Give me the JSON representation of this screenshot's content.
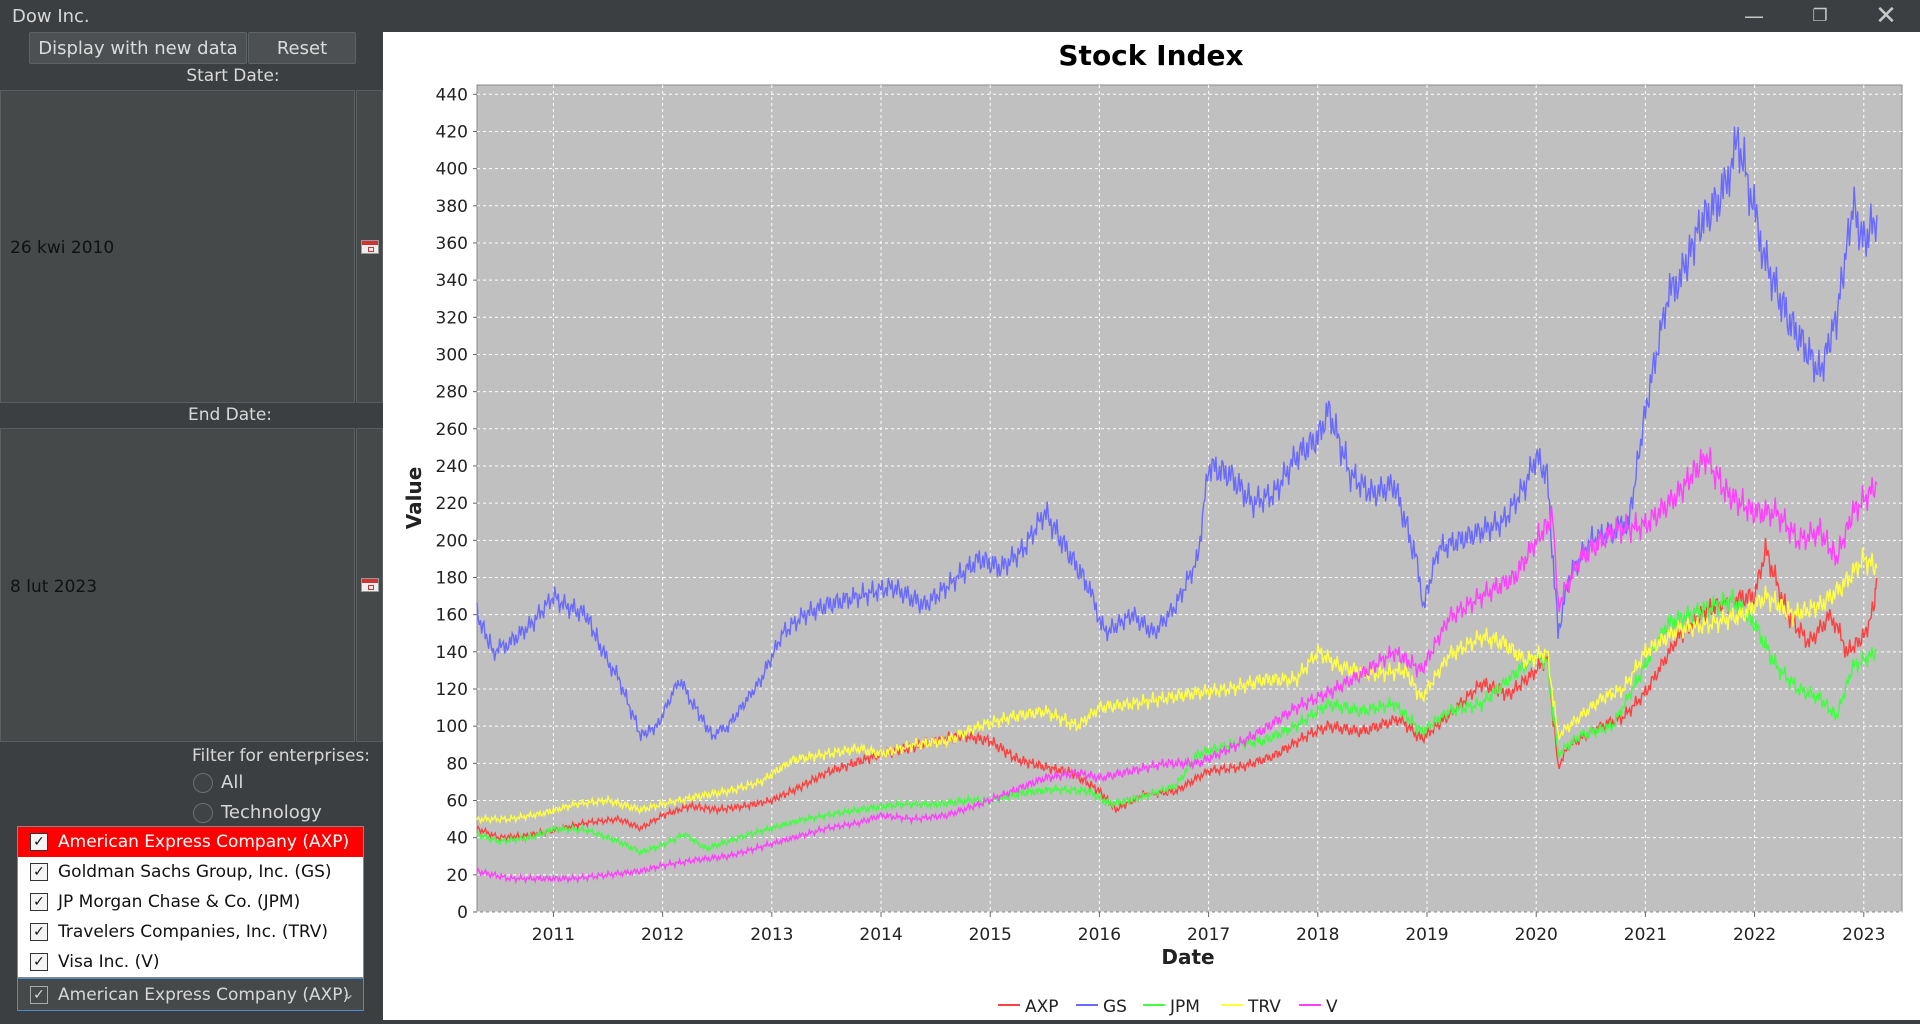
{
  "window": {
    "title": "Dow Inc.",
    "controls": [
      "minimize",
      "restore",
      "close"
    ]
  },
  "toolbar": {
    "display_label": "Display with new data",
    "reset_label": "Reset"
  },
  "dates": {
    "start_label": "Start Date:",
    "start_value": "26 kwi 2010",
    "end_label": "End Date:",
    "end_value": "8 lut 2023"
  },
  "filter": {
    "label": "Filter for enterprises:",
    "options": [
      "All",
      "Technology"
    ]
  },
  "companies": {
    "items": [
      {
        "label": "American Express Company (AXP)",
        "checked": true,
        "selected": true
      },
      {
        "label": "Goldman Sachs Group, Inc. (GS)",
        "checked": true
      },
      {
        "label": "JP Morgan Chase & Co. (JPM)",
        "checked": true
      },
      {
        "label": "Travelers Companies, Inc. (TRV)",
        "checked": true
      },
      {
        "label": "Visa Inc. (V)",
        "checked": true
      }
    ],
    "combo_value": "American Express Company (AXP)"
  },
  "colors": {
    "selected_item": "#ff0000",
    "plot_bg": "#c0c0c0"
  },
  "chart_data": {
    "type": "line",
    "title": "Stock Index",
    "xlabel": "Date",
    "ylabel": "Value",
    "x_ticks": [
      "2011",
      "2012",
      "2013",
      "2014",
      "2015",
      "2016",
      "2017",
      "2018",
      "2019",
      "2020",
      "2021",
      "2022",
      "2023"
    ],
    "y_ticks": [
      0,
      20,
      40,
      60,
      80,
      100,
      120,
      140,
      160,
      180,
      200,
      220,
      240,
      260,
      280,
      300,
      320,
      340,
      360,
      380,
      400,
      420,
      440
    ],
    "xlim": [
      2010.3,
      2023.35
    ],
    "ylim": [
      0,
      445
    ],
    "grid": true,
    "legend": "bottom",
    "series": [
      {
        "name": "AXP",
        "color": "#ff4040",
        "points": [
          [
            2010.3,
            45
          ],
          [
            2010.5,
            40
          ],
          [
            2010.75,
            41
          ],
          [
            2011,
            44
          ],
          [
            2011.3,
            48
          ],
          [
            2011.6,
            50
          ],
          [
            2011.8,
            45
          ],
          [
            2012,
            52
          ],
          [
            2012.25,
            57
          ],
          [
            2012.5,
            55
          ],
          [
            2012.75,
            57
          ],
          [
            2013,
            60
          ],
          [
            2013.25,
            67
          ],
          [
            2013.5,
            75
          ],
          [
            2013.75,
            80
          ],
          [
            2014,
            85
          ],
          [
            2014.25,
            88
          ],
          [
            2014.5,
            92
          ],
          [
            2014.75,
            95
          ],
          [
            2015,
            92
          ],
          [
            2015.25,
            82
          ],
          [
            2015.5,
            78
          ],
          [
            2015.75,
            75
          ],
          [
            2016,
            65
          ],
          [
            2016.15,
            55
          ],
          [
            2016.4,
            63
          ],
          [
            2016.7,
            65
          ],
          [
            2017,
            76
          ],
          [
            2017.3,
            78
          ],
          [
            2017.6,
            84
          ],
          [
            2017.9,
            95
          ],
          [
            2018.1,
            100
          ],
          [
            2018.4,
            97
          ],
          [
            2018.75,
            104
          ],
          [
            2018.95,
            93
          ],
          [
            2019.2,
            106
          ],
          [
            2019.5,
            123
          ],
          [
            2019.75,
            117
          ],
          [
            2020,
            130
          ],
          [
            2020.1,
            137
          ],
          [
            2020.2,
            78
          ],
          [
            2020.3,
            90
          ],
          [
            2020.6,
            100
          ],
          [
            2020.8,
            105
          ],
          [
            2021,
            118
          ],
          [
            2021.3,
            148
          ],
          [
            2021.55,
            162
          ],
          [
            2021.8,
            168
          ],
          [
            2022,
            170
          ],
          [
            2022.1,
            195
          ],
          [
            2022.3,
            160
          ],
          [
            2022.5,
            145
          ],
          [
            2022.7,
            160
          ],
          [
            2022.85,
            140
          ],
          [
            2023,
            148
          ],
          [
            2023.1,
            165
          ],
          [
            2023.12,
            180
          ]
        ]
      },
      {
        "name": "GS",
        "color": "#6a6aff",
        "points": [
          [
            2010.3,
            160
          ],
          [
            2010.45,
            140
          ],
          [
            2010.6,
            145
          ],
          [
            2010.8,
            155
          ],
          [
            2011,
            170
          ],
          [
            2011.1,
            165
          ],
          [
            2011.3,
            160
          ],
          [
            2011.45,
            140
          ],
          [
            2011.6,
            125
          ],
          [
            2011.8,
            95
          ],
          [
            2011.95,
            100
          ],
          [
            2012.15,
            125
          ],
          [
            2012.3,
            110
          ],
          [
            2012.45,
            95
          ],
          [
            2012.6,
            100
          ],
          [
            2012.9,
            125
          ],
          [
            2013.1,
            150
          ],
          [
            2013.3,
            160
          ],
          [
            2013.5,
            165
          ],
          [
            2013.8,
            170
          ],
          [
            2014.1,
            175
          ],
          [
            2014.4,
            165
          ],
          [
            2014.7,
            180
          ],
          [
            2014.9,
            190
          ],
          [
            2015.1,
            185
          ],
          [
            2015.3,
            195
          ],
          [
            2015.5,
            215
          ],
          [
            2015.7,
            195
          ],
          [
            2015.9,
            175
          ],
          [
            2016.05,
            150
          ],
          [
            2016.3,
            160
          ],
          [
            2016.5,
            150
          ],
          [
            2016.7,
            165
          ],
          [
            2016.9,
            190
          ],
          [
            2017,
            240
          ],
          [
            2017.2,
            235
          ],
          [
            2017.4,
            220
          ],
          [
            2017.6,
            225
          ],
          [
            2017.8,
            245
          ],
          [
            2018,
            255
          ],
          [
            2018.1,
            270
          ],
          [
            2018.3,
            235
          ],
          [
            2018.5,
            225
          ],
          [
            2018.7,
            230
          ],
          [
            2018.9,
            190
          ],
          [
            2018.97,
            165
          ],
          [
            2019.1,
            195
          ],
          [
            2019.3,
            200
          ],
          [
            2019.5,
            205
          ],
          [
            2019.7,
            210
          ],
          [
            2019.9,
            230
          ],
          [
            2020,
            245
          ],
          [
            2020.1,
            235
          ],
          [
            2020.2,
            150
          ],
          [
            2020.3,
            180
          ],
          [
            2020.5,
            200
          ],
          [
            2020.7,
            205
          ],
          [
            2020.85,
            210
          ],
          [
            2021,
            270
          ],
          [
            2021.2,
            330
          ],
          [
            2021.35,
            345
          ],
          [
            2021.5,
            370
          ],
          [
            2021.7,
            385
          ],
          [
            2021.85,
            415
          ],
          [
            2021.95,
            390
          ],
          [
            2022.1,
            350
          ],
          [
            2022.3,
            320
          ],
          [
            2022.5,
            300
          ],
          [
            2022.6,
            290
          ],
          [
            2022.75,
            320
          ],
          [
            2022.9,
            380
          ],
          [
            2023,
            360
          ],
          [
            2023.12,
            375
          ]
        ]
      },
      {
        "name": "JPM",
        "color": "#40ff40",
        "points": [
          [
            2010.3,
            42
          ],
          [
            2010.5,
            38
          ],
          [
            2010.8,
            40
          ],
          [
            2011,
            45
          ],
          [
            2011.3,
            44
          ],
          [
            2011.6,
            38
          ],
          [
            2011.8,
            32
          ],
          [
            2012,
            36
          ],
          [
            2012.2,
            42
          ],
          [
            2012.4,
            34
          ],
          [
            2012.6,
            38
          ],
          [
            2012.8,
            42
          ],
          [
            2013,
            45
          ],
          [
            2013.3,
            50
          ],
          [
            2013.6,
            53
          ],
          [
            2013.9,
            56
          ],
          [
            2014.2,
            58
          ],
          [
            2014.5,
            58
          ],
          [
            2014.8,
            60
          ],
          [
            2015,
            60
          ],
          [
            2015.3,
            64
          ],
          [
            2015.6,
            66
          ],
          [
            2015.9,
            65
          ],
          [
            2016.1,
            58
          ],
          [
            2016.4,
            62
          ],
          [
            2016.7,
            68
          ],
          [
            2016.9,
            85
          ],
          [
            2017.2,
            90
          ],
          [
            2017.5,
            92
          ],
          [
            2017.8,
            100
          ],
          [
            2018.1,
            112
          ],
          [
            2018.4,
            108
          ],
          [
            2018.7,
            112
          ],
          [
            2018.95,
            97
          ],
          [
            2019.2,
            108
          ],
          [
            2019.5,
            112
          ],
          [
            2019.8,
            128
          ],
          [
            2020,
            138
          ],
          [
            2020.1,
            135
          ],
          [
            2020.2,
            85
          ],
          [
            2020.4,
            95
          ],
          [
            2020.7,
            100
          ],
          [
            2020.9,
            122
          ],
          [
            2021.2,
            155
          ],
          [
            2021.5,
            162
          ],
          [
            2021.8,
            168
          ],
          [
            2022,
            155
          ],
          [
            2022.2,
            132
          ],
          [
            2022.4,
            120
          ],
          [
            2022.6,
            115
          ],
          [
            2022.75,
            105
          ],
          [
            2022.9,
            132
          ],
          [
            2023.12,
            140
          ]
        ]
      },
      {
        "name": "TRV",
        "color": "#ffff40",
        "points": [
          [
            2010.3,
            50
          ],
          [
            2010.6,
            50
          ],
          [
            2010.9,
            53
          ],
          [
            2011.2,
            58
          ],
          [
            2011.5,
            60
          ],
          [
            2011.8,
            55
          ],
          [
            2012,
            58
          ],
          [
            2012.3,
            62
          ],
          [
            2012.6,
            65
          ],
          [
            2012.9,
            70
          ],
          [
            2013.2,
            82
          ],
          [
            2013.5,
            85
          ],
          [
            2013.8,
            88
          ],
          [
            2014,
            85
          ],
          [
            2014.3,
            90
          ],
          [
            2014.6,
            92
          ],
          [
            2014.9,
            100
          ],
          [
            2015.2,
            105
          ],
          [
            2015.5,
            108
          ],
          [
            2015.8,
            100
          ],
          [
            2016,
            110
          ],
          [
            2016.3,
            112
          ],
          [
            2016.6,
            115
          ],
          [
            2016.9,
            118
          ],
          [
            2017.2,
            120
          ],
          [
            2017.5,
            125
          ],
          [
            2017.8,
            125
          ],
          [
            2018,
            140
          ],
          [
            2018.2,
            132
          ],
          [
            2018.5,
            128
          ],
          [
            2018.8,
            130
          ],
          [
            2018.95,
            115
          ],
          [
            2019.2,
            138
          ],
          [
            2019.5,
            148
          ],
          [
            2019.7,
            145
          ],
          [
            2019.9,
            135
          ],
          [
            2020.1,
            140
          ],
          [
            2020.2,
            95
          ],
          [
            2020.4,
            105
          ],
          [
            2020.6,
            115
          ],
          [
            2020.8,
            120
          ],
          [
            2021,
            140
          ],
          [
            2021.3,
            152
          ],
          [
            2021.6,
            155
          ],
          [
            2021.9,
            160
          ],
          [
            2022.1,
            170
          ],
          [
            2022.35,
            160
          ],
          [
            2022.6,
            165
          ],
          [
            2022.8,
            175
          ],
          [
            2023,
            190
          ],
          [
            2023.12,
            185
          ]
        ]
      },
      {
        "name": "V",
        "color": "#ff40ff",
        "points": [
          [
            2010.3,
            22
          ],
          [
            2010.6,
            18
          ],
          [
            2010.9,
            18
          ],
          [
            2011.2,
            18
          ],
          [
            2011.5,
            20
          ],
          [
            2011.8,
            22
          ],
          [
            2012,
            25
          ],
          [
            2012.3,
            28
          ],
          [
            2012.6,
            30
          ],
          [
            2012.9,
            35
          ],
          [
            2013.2,
            40
          ],
          [
            2013.5,
            45
          ],
          [
            2013.8,
            48
          ],
          [
            2014,
            52
          ],
          [
            2014.3,
            50
          ],
          [
            2014.6,
            52
          ],
          [
            2014.9,
            58
          ],
          [
            2015.2,
            65
          ],
          [
            2015.5,
            72
          ],
          [
            2015.8,
            75
          ],
          [
            2016,
            72
          ],
          [
            2016.3,
            76
          ],
          [
            2016.6,
            80
          ],
          [
            2016.9,
            80
          ],
          [
            2017.2,
            88
          ],
          [
            2017.5,
            98
          ],
          [
            2017.8,
            110
          ],
          [
            2018.1,
            118
          ],
          [
            2018.4,
            128
          ],
          [
            2018.7,
            140
          ],
          [
            2018.95,
            130
          ],
          [
            2019.2,
            158
          ],
          [
            2019.5,
            170
          ],
          [
            2019.8,
            180
          ],
          [
            2020,
            200
          ],
          [
            2020.15,
            212
          ],
          [
            2020.2,
            165
          ],
          [
            2020.4,
            190
          ],
          [
            2020.7,
            205
          ],
          [
            2021,
            208
          ],
          [
            2021.3,
            225
          ],
          [
            2021.55,
            245
          ],
          [
            2021.75,
            225
          ],
          [
            2022,
            215
          ],
          [
            2022.2,
            215
          ],
          [
            2022.4,
            200
          ],
          [
            2022.6,
            205
          ],
          [
            2022.75,
            190
          ],
          [
            2022.9,
            215
          ],
          [
            2023.12,
            230
          ]
        ]
      }
    ]
  }
}
